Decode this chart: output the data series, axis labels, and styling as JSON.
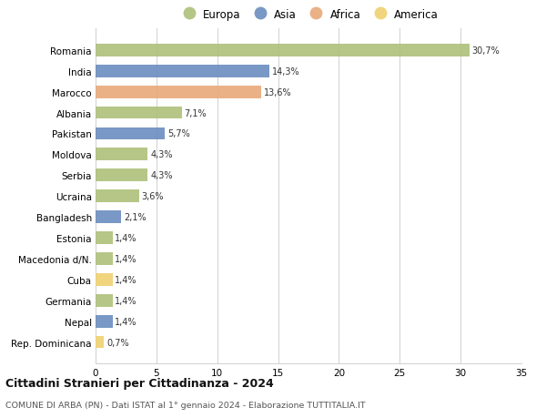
{
  "countries": [
    "Romania",
    "India",
    "Marocco",
    "Albania",
    "Pakistan",
    "Moldova",
    "Serbia",
    "Ucraina",
    "Bangladesh",
    "Estonia",
    "Macedonia d/N.",
    "Cuba",
    "Germania",
    "Nepal",
    "Rep. Dominicana"
  ],
  "values": [
    30.7,
    14.3,
    13.6,
    7.1,
    5.7,
    4.3,
    4.3,
    3.6,
    2.1,
    1.4,
    1.4,
    1.4,
    1.4,
    1.4,
    0.7
  ],
  "labels": [
    "30,7%",
    "14,3%",
    "13,6%",
    "7,1%",
    "5,7%",
    "4,3%",
    "4,3%",
    "3,6%",
    "2,1%",
    "1,4%",
    "1,4%",
    "1,4%",
    "1,4%",
    "1,4%",
    "0,7%"
  ],
  "continents": [
    "Europa",
    "Asia",
    "Africa",
    "Europa",
    "Asia",
    "Europa",
    "Europa",
    "Europa",
    "Asia",
    "Europa",
    "Europa",
    "America",
    "Europa",
    "Asia",
    "America"
  ],
  "colors": {
    "Europa": "#adc07a",
    "Asia": "#6a8dbf",
    "Africa": "#e8a97a",
    "America": "#f0d070"
  },
  "legend_order": [
    "Europa",
    "Asia",
    "Africa",
    "America"
  ],
  "title": "Cittadini Stranieri per Cittadinanza - 2024",
  "subtitle": "COMUNE DI ARBA (PN) - Dati ISTAT al 1° gennaio 2024 - Elaborazione TUTTITALIA.IT",
  "xlim": [
    0,
    35
  ],
  "xticks": [
    0,
    5,
    10,
    15,
    20,
    25,
    30,
    35
  ],
  "background_color": "#ffffff",
  "grid_color": "#d0d0d0"
}
